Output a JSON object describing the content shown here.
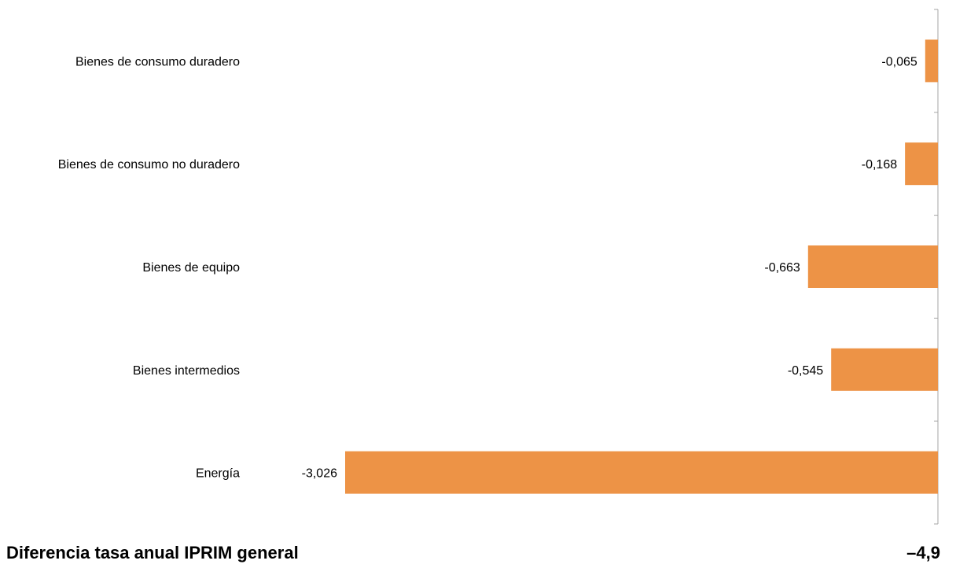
{
  "chart_data": {
    "type": "bar",
    "orientation": "horizontal",
    "categories": [
      "Bienes de consumo duradero",
      "Bienes de consumo no duradero",
      "Bienes de equipo",
      "Bienes intermedios",
      "Energía"
    ],
    "values": [
      -0.065,
      -0.168,
      -0.663,
      -0.545,
      -3.026
    ],
    "value_labels": [
      "-0,065",
      "-0,168",
      "-0,663",
      "-0,545",
      "-3,026"
    ],
    "xlim": [
      -3.026,
      0
    ],
    "bar_color": "#ED9346",
    "axis_color": "#A6A6A6",
    "grid": false,
    "title": "",
    "xlabel": "",
    "ylabel": ""
  },
  "footer": {
    "label": "Diferencia tasa anual IPRIM general",
    "value": "–4,9"
  }
}
